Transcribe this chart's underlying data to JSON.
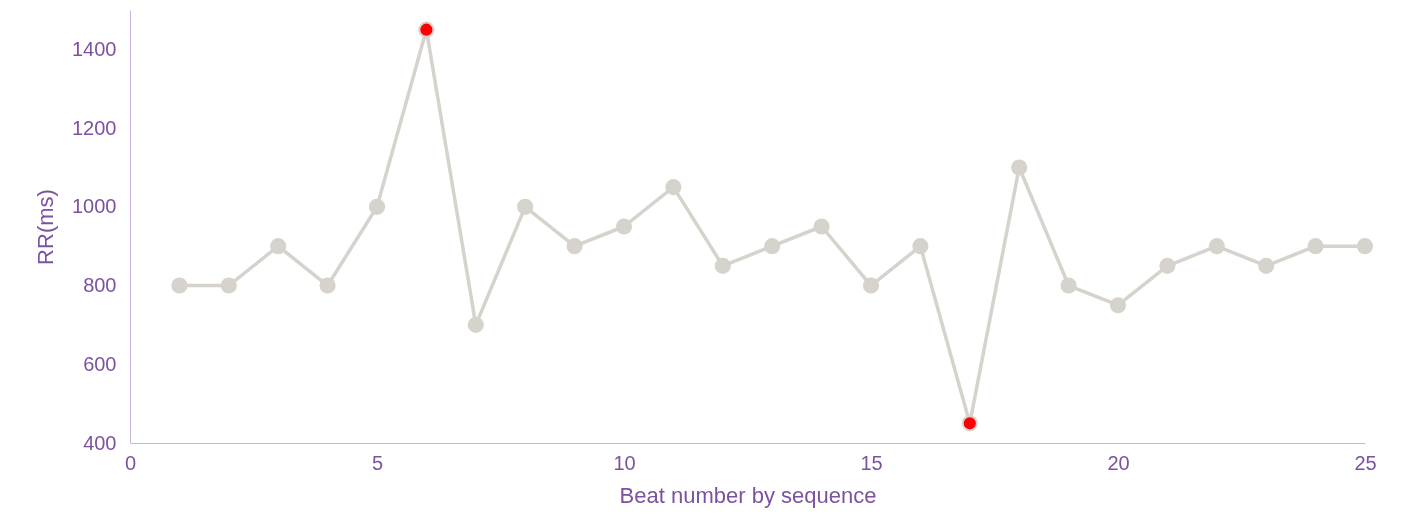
{
  "chart_data": {
    "type": "line",
    "xlabel": "Beat number by sequence",
    "ylabel": "RR(ms)",
    "x": [
      1,
      2,
      3,
      4,
      5,
      6,
      7,
      8,
      9,
      10,
      11,
      12,
      13,
      14,
      15,
      16,
      17,
      18,
      19,
      20,
      21,
      22,
      23,
      24,
      25
    ],
    "series": [
      {
        "color": "#d6d2cc",
        "colors": [
          "#d6d2cc",
          "#d6d2cc",
          "#d6d2cc",
          "#d6d2cc",
          "#d6d2cc",
          "#ff0000",
          "#d6d2cc",
          "#d6d2cc",
          "#d6d2cc",
          "#d6d2cc",
          "#d6d2cc",
          "#d6d2cc",
          "#d6d2cc",
          "#d6d2cc",
          "#d6d2cc",
          "#d6d2cc",
          "#ff0000",
          "#d6d2cc",
          "#d6d2cc",
          "#d6d2cc",
          "#d6d2cc",
          "#d6d2cc",
          "#d6d2cc",
          "#d6d2cc",
          "#d6d2cc"
        ],
        "values": [
          800,
          800,
          900,
          800,
          1000,
          1450,
          700,
          1000,
          900,
          950,
          1050,
          850,
          900,
          950,
          800,
          900,
          450,
          1100,
          800,
          750,
          850,
          900,
          850,
          900,
          900
        ]
      }
    ],
    "xlim": [
      0,
      25
    ],
    "xticks": [
      0,
      5,
      10,
      15,
      20,
      25
    ],
    "ylim": [
      400,
      1500
    ],
    "yticks": [
      400,
      600,
      800,
      1000,
      1200,
      1400
    ],
    "grid": false,
    "marker": "circle",
    "line_style": "solid"
  }
}
